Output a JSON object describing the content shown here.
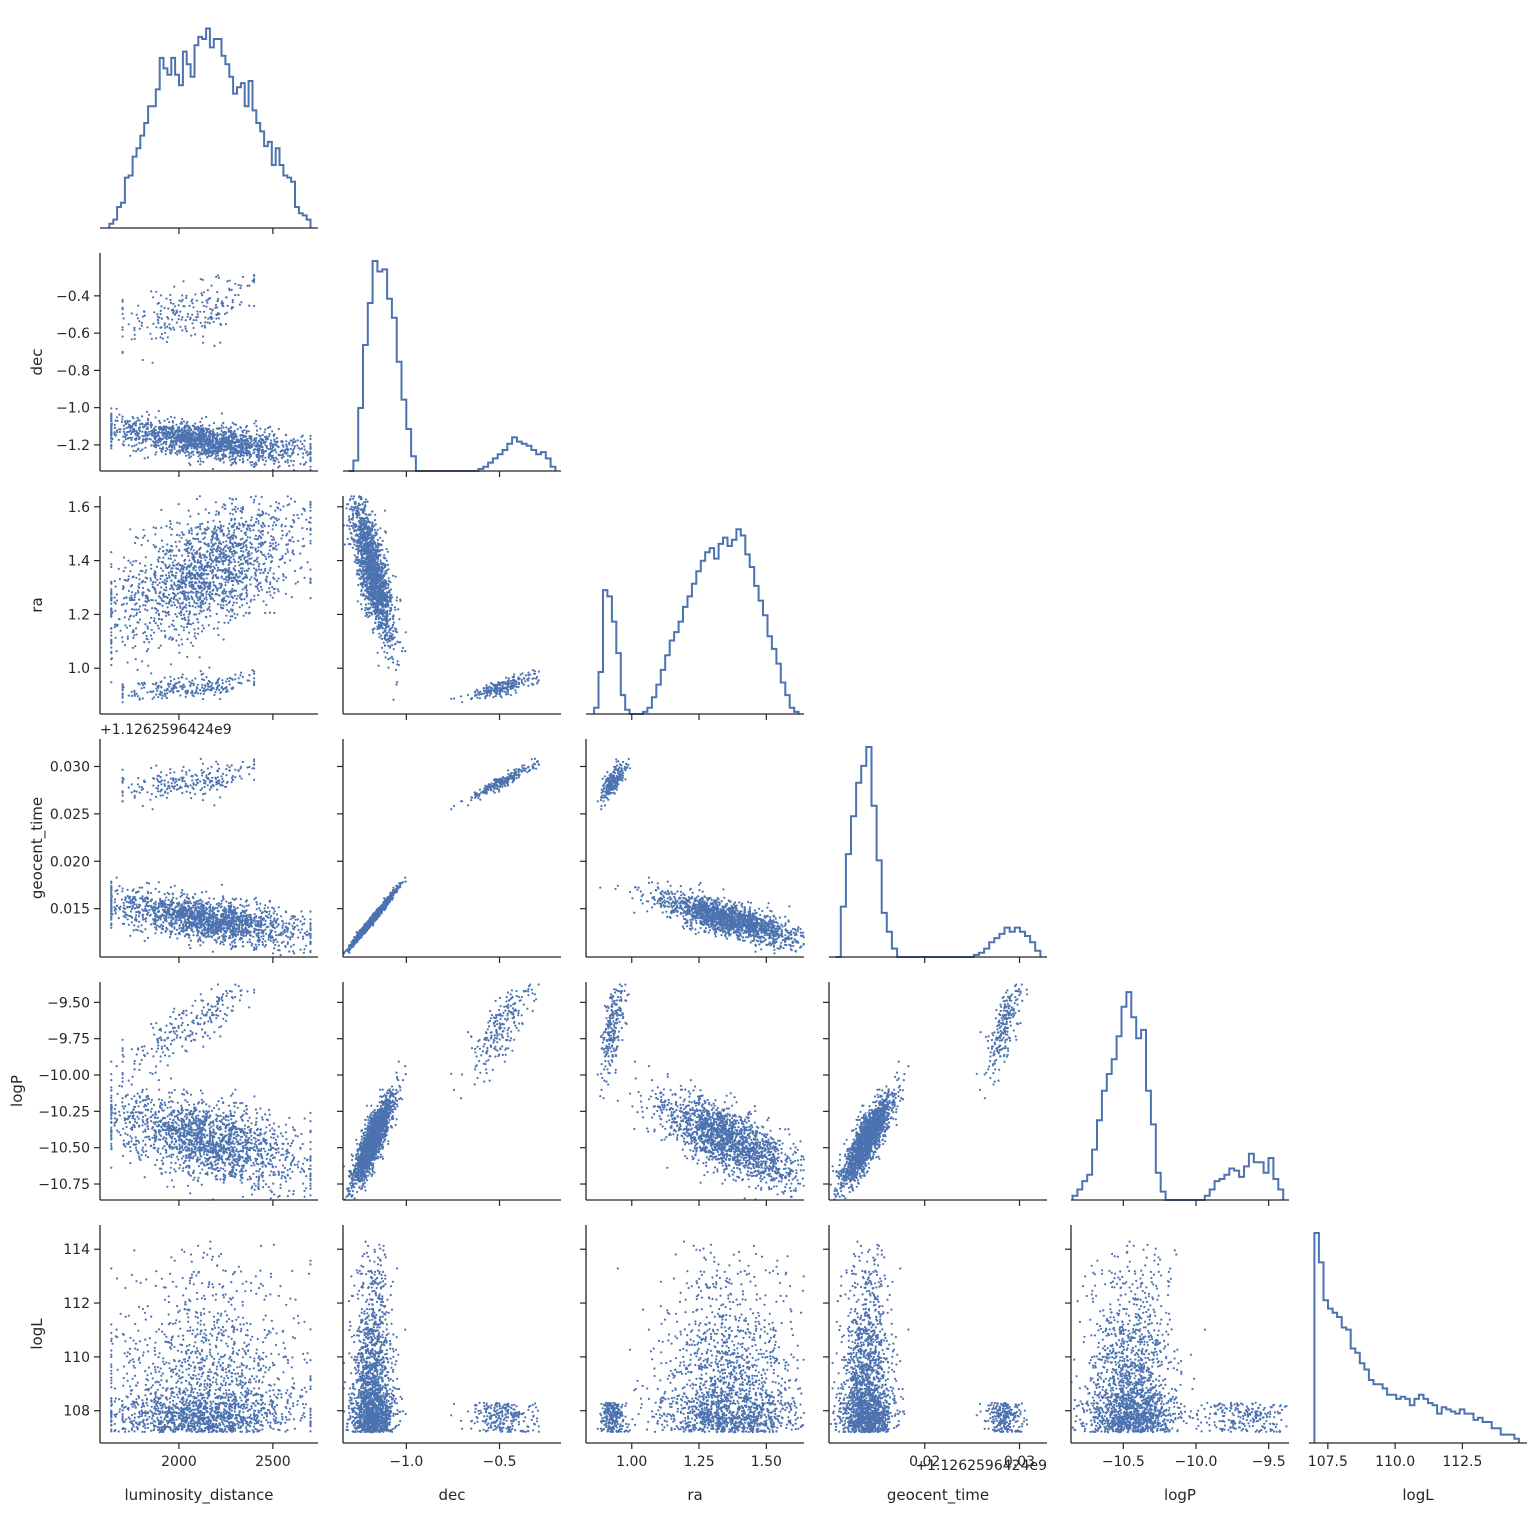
{
  "chart_data": {
    "type": "scatter",
    "layout": "corner-pairplot",
    "marker_color": "#4c72b0",
    "axis_color": "#262626",
    "variables": [
      {
        "name": "luminosity_distance",
        "xlabel": "luminosity_distance",
        "ylabel": "",
        "range": [
          1580,
          2740
        ],
        "ticks": [
          2000,
          2500
        ],
        "tick_labels": [
          "2000",
          "2500"
        ],
        "offset_text": ""
      },
      {
        "name": "dec",
        "xlabel": "dec",
        "ylabel": "dec",
        "range": [
          -1.34,
          -0.17
        ],
        "ticks": [
          -1.2,
          -1.0,
          -0.8,
          -0.6,
          -0.4
        ],
        "tick_labels": [
          "−1.2",
          "−1.0",
          "−0.8",
          "−0.6",
          "−0.4"
        ],
        "x_ticks": [
          -1.0,
          -0.5
        ],
        "x_tick_labels": [
          "−1.0",
          "−0.5"
        ],
        "offset_text": ""
      },
      {
        "name": "ra",
        "xlabel": "ra",
        "ylabel": "ra",
        "range": [
          0.83,
          1.64
        ],
        "ticks": [
          1.0,
          1.2,
          1.4,
          1.6
        ],
        "tick_labels": [
          "1.0",
          "1.2",
          "1.4",
          "1.6"
        ],
        "x_ticks": [
          1.0,
          1.25,
          1.5
        ],
        "x_tick_labels": [
          "1.00",
          "1.25",
          "1.50"
        ],
        "offset_text": ""
      },
      {
        "name": "geocent_time",
        "xlabel": "geocent_time",
        "ylabel": "geocent_time",
        "range": [
          0.0099,
          0.0329
        ],
        "ticks": [
          0.015,
          0.02,
          0.025,
          0.03
        ],
        "tick_labels": [
          "0.015",
          "0.020",
          "0.025",
          "0.030"
        ],
        "x_ticks": [
          0.02,
          0.03
        ],
        "x_tick_labels": [
          "0.02",
          "0.03"
        ],
        "offset_text": "+1.126259642​4e9"
      },
      {
        "name": "logP",
        "xlabel": "logP",
        "ylabel": "logP",
        "range": [
          -10.86,
          -9.36
        ],
        "ticks": [
          -10.75,
          -10.5,
          -10.25,
          -10.0,
          -9.75,
          -9.5
        ],
        "tick_labels": [
          "−10.75",
          "−10.50",
          "−10.25",
          "−10.00",
          "−9.75",
          "−9.50"
        ],
        "x_ticks": [
          -10.5,
          -10.0,
          -9.5
        ],
        "x_tick_labels": [
          "−10.5",
          "−10.0",
          "−9.5"
        ],
        "offset_text": ""
      },
      {
        "name": "logL",
        "xlabel": "logL",
        "ylabel": "logL",
        "range": [
          106.8,
          114.9
        ],
        "ticks": [
          108,
          110,
          112,
          114
        ],
        "tick_labels": [
          "108",
          "110",
          "112",
          "114"
        ],
        "x_ticks": [
          107.5,
          110.0,
          112.5
        ],
        "x_tick_labels": [
          "107.5",
          "110.0",
          "112.5"
        ],
        "offset_text": ""
      }
    ],
    "diagonal_histograms": [
      {
        "variable": "luminosity_distance",
        "bins": [
          1630,
          2700
        ],
        "counts": [
          0.02,
          0.04,
          0.1,
          0.12,
          0.24,
          0.25,
          0.34,
          0.38,
          0.44,
          0.5,
          0.58,
          0.58,
          0.66,
          0.81,
          0.76,
          0.73,
          0.81,
          0.73,
          0.68,
          0.84,
          0.78,
          0.72,
          0.87,
          0.91,
          0.9,
          0.95,
          0.86,
          0.9,
          0.9,
          0.82,
          0.78,
          0.72,
          0.64,
          0.67,
          0.69,
          0.58,
          0.7,
          0.56,
          0.5,
          0.46,
          0.39,
          0.41,
          0.3,
          0.38,
          0.3,
          0.25,
          0.24,
          0.22,
          0.1,
          0.07,
          0.06,
          0.04
        ]
      },
      {
        "variable": "dec",
        "bins": [
          -1.31,
          -0.2
        ],
        "counts": [
          0,
          0.05,
          0.3,
          0.6,
          0.8,
          1.0,
          0.95,
          0.96,
          0.82,
          0.73,
          0.52,
          0.34,
          0.2,
          0.07,
          0,
          0,
          0,
          0,
          0,
          0,
          0,
          0,
          0,
          0,
          0,
          0,
          0,
          0.01,
          0.02,
          0.04,
          0.06,
          0.08,
          0.1,
          0.13,
          0.16,
          0.14,
          0.13,
          0.12,
          0.1,
          0.08,
          0.09,
          0.06,
          0.02
        ]
      },
      {
        "variable": "ra",
        "bins": [
          0.86,
          1.62
        ],
        "counts": [
          0.03,
          0.2,
          0.59,
          0.56,
          0.44,
          0.29,
          0.09,
          0.02,
          0,
          0,
          0,
          0.01,
          0.03,
          0.08,
          0.14,
          0.21,
          0.28,
          0.35,
          0.39,
          0.44,
          0.51,
          0.56,
          0.62,
          0.68,
          0.73,
          0.77,
          0.79,
          0.74,
          0.81,
          0.84,
          0.8,
          0.83,
          0.88,
          0.85,
          0.76,
          0.7,
          0.61,
          0.54,
          0.47,
          0.37,
          0.31,
          0.24,
          0.15,
          0.09,
          0.03,
          0.01
        ]
      },
      {
        "variable": "geocent_time",
        "bins": [
          0.0106,
          0.0322
        ],
        "counts": [
          0,
          0.24,
          0.49,
          0.67,
          0.83,
          0.91,
          1.0,
          0.72,
          0.46,
          0.21,
          0.12,
          0.04,
          0,
          0,
          0,
          0,
          0,
          0,
          0,
          0,
          0,
          0,
          0,
          0,
          0,
          0,
          0,
          0.01,
          0.02,
          0.04,
          0.07,
          0.09,
          0.11,
          0.14,
          0.12,
          0.14,
          0.12,
          0.1,
          0.07,
          0.03
        ]
      },
      {
        "variable": "logP",
        "bins": [
          -10.85,
          -9.4
        ],
        "counts": [
          0.02,
          0.05,
          0.09,
          0.12,
          0.24,
          0.38,
          0.52,
          0.6,
          0.67,
          0.78,
          0.92,
          0.99,
          0.87,
          0.77,
          0.81,
          0.52,
          0.36,
          0.13,
          0.04,
          0,
          0,
          0,
          0,
          0,
          0,
          0,
          0,
          0.02,
          0.05,
          0.09,
          0.1,
          0.12,
          0.15,
          0.14,
          0.11,
          0.16,
          0.22,
          0.18,
          0.18,
          0.13,
          0.2,
          0.1,
          0.05
        ]
      },
      {
        "variable": "logL",
        "bins": [
          107.0,
          114.6
        ],
        "counts": [
          1.0,
          0.86,
          0.68,
          0.64,
          0.62,
          0.6,
          0.55,
          0.54,
          0.45,
          0.43,
          0.38,
          0.35,
          0.3,
          0.28,
          0.28,
          0.26,
          0.23,
          0.23,
          0.21,
          0.22,
          0.21,
          0.18,
          0.21,
          0.23,
          0.21,
          0.19,
          0.18,
          0.14,
          0.17,
          0.16,
          0.15,
          0.14,
          0.16,
          0.14,
          0.14,
          0.11,
          0.12,
          0.1,
          0.1,
          0.07,
          0.07,
          0.04,
          0.04,
          0.04,
          0.02
        ]
      }
    ],
    "point_count": 2000,
    "mode_fraction_secondary": 0.13
  }
}
